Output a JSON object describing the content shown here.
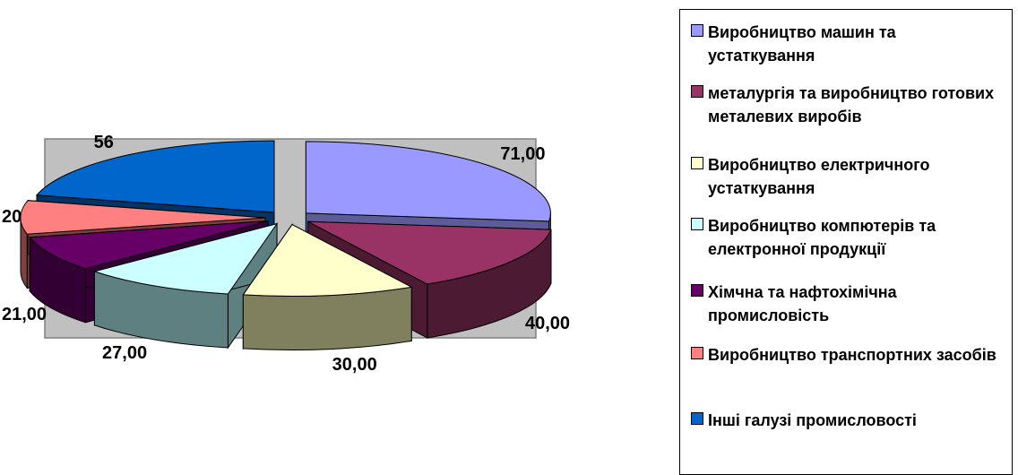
{
  "chart_data": {
    "type": "pie",
    "style": "3d-exploded",
    "title": "",
    "categories": [
      "Виробництво машин та устаткування",
      "металургія та виробництво готових металевих виробів",
      "Виробництво електричного устаткування",
      "Виробництво компютерів та електронної продукції",
      "Хімчна та нафтохімічна промисловість",
      "Виробництво транспортних засобів",
      "Інші галузі промисловості"
    ],
    "values": [
      71.0,
      40.0,
      30.0,
      27.0,
      21.0,
      20,
      56
    ],
    "data_labels": [
      "71,00",
      "40,00",
      "30,00",
      "27,00",
      "21,00",
      "20",
      "56"
    ],
    "colors": [
      "#9999ff",
      "#993366",
      "#ffffcc",
      "#ccffff",
      "#660066",
      "#ff8080",
      "#0066cc"
    ],
    "side_colors": [
      "#5c5c99",
      "#4d1a33",
      "#80805e",
      "#5e8080",
      "#330033",
      "#804040",
      "#003366"
    ],
    "legend_position": "right",
    "plot_background": "#c0c0c0"
  },
  "legend": {
    "items": [
      {
        "label": "Виробництво машин та устаткування",
        "color": "#9999ff"
      },
      {
        "label": "металургія та виробництво готових металевих виробів",
        "color": "#993366"
      },
      {
        "label": "Виробництво електричного устаткування",
        "color": "#ffffcc"
      },
      {
        "label": "Виробництво компютерів та електронної продукції",
        "color": "#ccffff"
      },
      {
        "label": "Хімчна та нафтохімічна промисловість",
        "color": "#660066"
      },
      {
        "label": "Виробництво транспортних засобів",
        "color": "#ff8080"
      },
      {
        "label": "Інші галузі промисловості",
        "color": "#0066cc"
      }
    ]
  }
}
